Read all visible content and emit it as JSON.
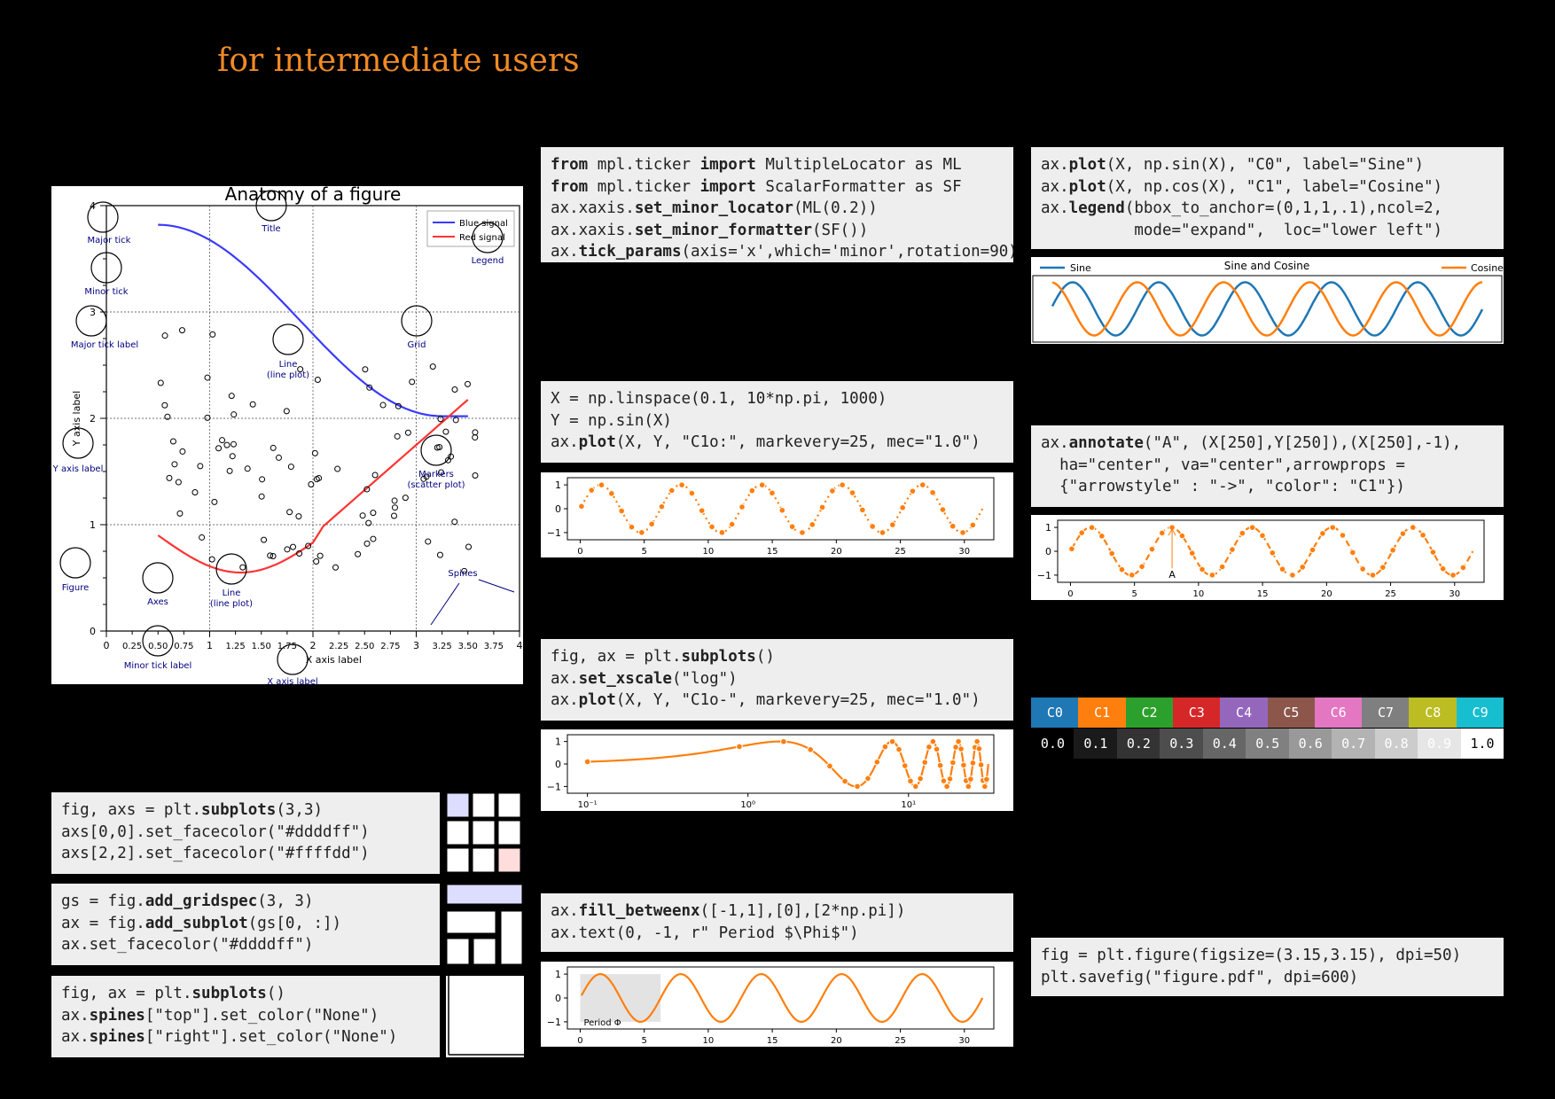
{
  "title": "for intermediate users",
  "anatomy": {
    "title": "Anatomy of a figure",
    "legend": [
      "Blue signal",
      "Red signal"
    ],
    "colors": {
      "blue": "#3a3aff",
      "red": "#ff3333",
      "annot": "#000080"
    },
    "xticks": [
      "0",
      "1",
      "2",
      "3",
      "4"
    ],
    "yticks": [
      "0",
      "1",
      "2",
      "3",
      "4"
    ],
    "xminor": [
      "0.25",
      "0.50",
      "0.75",
      "1.25",
      "1.50",
      "1.75",
      "2.25",
      "2.50",
      "2.75",
      "3.25",
      "3.50",
      "3.75"
    ],
    "xlabel": "X axis label",
    "ylabel": "Y axis label",
    "labels": {
      "major_tick": "Major tick",
      "minor_tick": "Minor tick",
      "major_tick_label": "Major tick label",
      "title": "Title",
      "legend": "Legend",
      "grid": "Grid",
      "line1": "Line",
      "line1b": "(line plot)",
      "yaxis": "Y axis label",
      "markers": "Markers",
      "markersb": "(scatter plot)",
      "spines": "Spines",
      "figure": "Figure",
      "axes": "Axes",
      "line2": "Line",
      "line2b": "(line plot)",
      "minor_tick_label": "Minor tick label",
      "xaxis": "X axis label"
    }
  },
  "code": {
    "ticker": [
      [
        {
          "t": "from",
          "b": true
        },
        {
          "t": " mpl.ticker "
        },
        {
          "t": "import",
          "b": true
        },
        {
          "t": " MultipleLocator as ML"
        }
      ],
      [
        {
          "t": "from",
          "b": true
        },
        {
          "t": " mpl.ticker "
        },
        {
          "t": "import",
          "b": true
        },
        {
          "t": " ScalarFormatter as SF"
        }
      ],
      [
        {
          "t": "ax.xaxis."
        },
        {
          "t": "set_minor_locator",
          "b": true
        },
        {
          "t": "(ML(0.2))"
        }
      ],
      [
        {
          "t": "ax.xaxis."
        },
        {
          "t": "set_minor_formatter",
          "b": true
        },
        {
          "t": "(SF())"
        }
      ],
      [
        {
          "t": "ax."
        },
        {
          "t": "tick_params",
          "b": true
        },
        {
          "t": "(axis='x',which='minor',rotation=90)"
        }
      ]
    ],
    "legend": [
      [
        {
          "t": "ax."
        },
        {
          "t": "plot",
          "b": true
        },
        {
          "t": "(X, np.sin(X), \"C0\", label=\"Sine\")"
        }
      ],
      [
        {
          "t": "ax."
        },
        {
          "t": "plot",
          "b": true
        },
        {
          "t": "(X, np.cos(X), \"C1\", label=\"Cosine\")"
        }
      ],
      [
        {
          "t": "ax."
        },
        {
          "t": "legend",
          "b": true
        },
        {
          "t": "(bbox_to_anchor=(0,1,1,.1),ncol=2,"
        }
      ],
      [
        {
          "t": "          mode=\"expand\",  loc=\"lower left\")"
        }
      ]
    ],
    "linspace": [
      [
        {
          "t": "X = np.linspace(0.1, 10*np.pi, 1000)"
        }
      ],
      [
        {
          "t": "Y = np.sin(X)"
        }
      ],
      [
        {
          "t": "ax."
        },
        {
          "t": "plot",
          "b": true
        },
        {
          "t": "(X, Y, \"C1o:\", markevery=25, mec=\"1.0\")"
        }
      ]
    ],
    "annotate": [
      [
        {
          "t": "ax."
        },
        {
          "t": "annotate",
          "b": true
        },
        {
          "t": "(\"A\", (X[250],Y[250]),(X[250],-1),"
        }
      ],
      [
        {
          "t": "  ha=\"center\", va=\"center\",arrowprops ="
        }
      ],
      [
        {
          "t": "  {\"arrowstyle\" : \"->\", \"color\": \"C1\"})"
        }
      ]
    ],
    "logscale": [
      [
        {
          "t": "fig, ax = plt."
        },
        {
          "t": "subplots",
          "b": true
        },
        {
          "t": "()"
        }
      ],
      [
        {
          "t": "ax."
        },
        {
          "t": "set_xscale",
          "b": true
        },
        {
          "t": "(\"log\")"
        }
      ],
      [
        {
          "t": "ax."
        },
        {
          "t": "plot",
          "b": true
        },
        {
          "t": "(X, Y, \"C1o-\", markevery=25, mec=\"1.0\")"
        }
      ]
    ],
    "subplots": [
      [
        {
          "t": "fig, axs = plt."
        },
        {
          "t": "subplots",
          "b": true
        },
        {
          "t": "(3,3)"
        }
      ],
      [
        {
          "t": "axs[0,0].set_facecolor(\"#ddddff\")"
        }
      ],
      [
        {
          "t": "axs[2,2].set_facecolor(\"#ffffdd\")"
        }
      ]
    ],
    "gridspec": [
      [
        {
          "t": "gs = fig."
        },
        {
          "t": "add_gridspec",
          "b": true
        },
        {
          "t": "(3, 3)"
        }
      ],
      [
        {
          "t": "ax = fig."
        },
        {
          "t": "add_subplot",
          "b": true
        },
        {
          "t": "(gs[0, :])"
        }
      ],
      [
        {
          "t": "ax.set_facecolor(\"#ddddff\")"
        }
      ]
    ],
    "spines": [
      [
        {
          "t": "fig, ax = plt."
        },
        {
          "t": "subplots",
          "b": true
        },
        {
          "t": "()"
        }
      ],
      [
        {
          "t": "ax."
        },
        {
          "t": "spines",
          "b": true
        },
        {
          "t": "[\"top\"].set_color(\"None\")"
        }
      ],
      [
        {
          "t": "ax."
        },
        {
          "t": "spines",
          "b": true
        },
        {
          "t": "[\"right\"].set_color(\"None\")"
        }
      ]
    ],
    "fillbetween": [
      [
        {
          "t": "ax."
        },
        {
          "t": "fill_betweenx",
          "b": true
        },
        {
          "t": "([-1,1],[0],[2*np.pi])"
        }
      ],
      [
        {
          "t": "ax.text(0, -1, r\" Period $\\Phi$\")"
        }
      ]
    ],
    "savefig": [
      [
        {
          "t": "fig = plt.figure(figsize=(3.15,3.15), dpi=50)"
        }
      ],
      [
        {
          "t": "plt.savefig(\"figure.pdf\", dpi=600)"
        }
      ]
    ]
  },
  "chart_data": [
    {
      "type": "line",
      "title": "Sine and Cosine",
      "series": [
        {
          "name": "Sine",
          "color": "#1f77b4"
        },
        {
          "name": "Cosine",
          "color": "#ff7f0e"
        }
      ],
      "xlim": [
        0.1,
        31.4
      ],
      "ylim": [
        -1,
        1
      ]
    },
    {
      "type": "line",
      "xticks": [
        "0",
        "5",
        "10",
        "15",
        "20",
        "25",
        "30"
      ],
      "yticks": [
        "1",
        "0",
        "−1"
      ],
      "xlim": [
        -1,
        32
      ],
      "ylim": [
        -1.3,
        1.3
      ],
      "color": "#ff7f0e"
    },
    {
      "type": "line",
      "xticks": [
        "0",
        "5",
        "10",
        "15",
        "20",
        "25",
        "30"
      ],
      "yticks": [
        "1",
        "0",
        "−1"
      ],
      "annotation": "A",
      "color": "#ff7f0e"
    },
    {
      "type": "line",
      "xscale": "log",
      "xticks": [
        "10⁻¹",
        "10⁰",
        "10¹"
      ],
      "yticks": [
        "1",
        "0",
        "−1"
      ],
      "color": "#ff7f0e"
    },
    {
      "type": "line",
      "xticks": [
        "0",
        "5",
        "10",
        "15",
        "20",
        "25",
        "30"
      ],
      "yticks": [
        "1",
        "0",
        "−1"
      ],
      "text": "Period Φ",
      "color": "#ff7f0e"
    }
  ],
  "colors": {
    "cycle": [
      {
        "label": "C0",
        "bg": "#1f77b4",
        "fg": "#ffffff"
      },
      {
        "label": "C1",
        "bg": "#ff7f0e",
        "fg": "#ffffff"
      },
      {
        "label": "C2",
        "bg": "#2ca02c",
        "fg": "#ffffff"
      },
      {
        "label": "C3",
        "bg": "#d62728",
        "fg": "#ffffff"
      },
      {
        "label": "C4",
        "bg": "#9467bd",
        "fg": "#ffffff"
      },
      {
        "label": "C5",
        "bg": "#8c564b",
        "fg": "#ffffff"
      },
      {
        "label": "C6",
        "bg": "#e377c2",
        "fg": "#ffffff"
      },
      {
        "label": "C7",
        "bg": "#7f7f7f",
        "fg": "#ffffff"
      },
      {
        "label": "C8",
        "bg": "#bcbd22",
        "fg": "#ffffff"
      },
      {
        "label": "C9",
        "bg": "#17becf",
        "fg": "#ffffff"
      }
    ],
    "gray": [
      {
        "label": "0.0",
        "bg": "#000000",
        "fg": "#ffffff"
      },
      {
        "label": "0.1",
        "bg": "#1a1a1a",
        "fg": "#ffffff"
      },
      {
        "label": "0.2",
        "bg": "#333333",
        "fg": "#ffffff"
      },
      {
        "label": "0.3",
        "bg": "#4d4d4d",
        "fg": "#ffffff"
      },
      {
        "label": "0.4",
        "bg": "#666666",
        "fg": "#ffffff"
      },
      {
        "label": "0.5",
        "bg": "#808080",
        "fg": "#ffffff"
      },
      {
        "label": "0.6",
        "bg": "#999999",
        "fg": "#ffffff"
      },
      {
        "label": "0.7",
        "bg": "#b3b3b3",
        "fg": "#ffffff"
      },
      {
        "label": "0.8",
        "bg": "#cccccc",
        "fg": "#ffffff"
      },
      {
        "label": "0.9",
        "bg": "#e6e6e6",
        "fg": "#ffffff"
      },
      {
        "label": "1.0",
        "bg": "#ffffff",
        "fg": "#000000"
      }
    ]
  },
  "layout_colors": {
    "blue": "#ddddff",
    "red": "#ffdddd",
    "yellow": "#ffffdd"
  }
}
